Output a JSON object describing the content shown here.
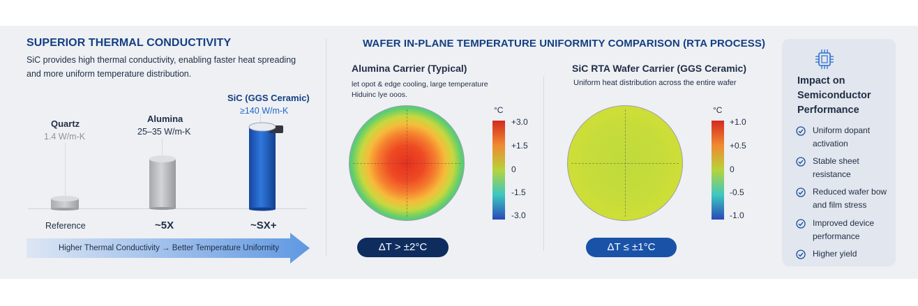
{
  "left": {
    "title": "SUPERIOR THERMAL CONDUCTIVITY",
    "desc1": "SiC provides high thermal conductivity, enabling faster heat spreading",
    "desc2": "and more uniform temperature distribution.",
    "materials": [
      {
        "name": "Quartz",
        "value": "1.4 W/m-K",
        "label": "Reference"
      },
      {
        "name": "Alumina",
        "value": "25–35 W/m-K",
        "label": "~5X"
      },
      {
        "name": "SiC (GGS Ceramic)",
        "value": "≥140 W/m-K",
        "label": "~SX+"
      }
    ],
    "arrow_text": "Higher Thermal Conductivity → Better Temperature Uniformity"
  },
  "middle": {
    "title": "WAFER IN-PLANE TEMPERATURE UNIFORMITY COMPARISON (RTA PROCESS)",
    "alumina": {
      "title": "Alumina Carrier (Typical)",
      "desc1": "let opot & edge cooling, large temperature",
      "desc2": "Hiduinc lye ooos.",
      "unit": "°C",
      "ticks": [
        "+3.0",
        "+1.5",
        "0",
        "-1.5",
        "-3.0"
      ],
      "delta": "ΔT > ±2°C"
    },
    "sic": {
      "title": "SiC RTA Wafer Carrier (GGS Ceramic)",
      "desc": "Uniform heat distribution across the entire wafer",
      "unit": "°C",
      "ticks": [
        "+1.0",
        "+0.5",
        "0",
        "-0.5",
        "-1.0"
      ],
      "delta": "ΔT ≤ ±1°C"
    }
  },
  "impact": {
    "icon": "chip-icon",
    "title1": "Impact on",
    "title2": "Semiconductor",
    "title3": "Performance",
    "items": [
      "Uniform dopant activation",
      "Stable sheet resistance",
      "Reduced wafer bow and film stress",
      "Improved device performance",
      "Higher yield"
    ]
  },
  "colors": {
    "accent": "#133f82",
    "sic_blue": "#1f63c7",
    "pill_dark": "#0e2d5e",
    "pill_blue": "#1a52a8"
  }
}
